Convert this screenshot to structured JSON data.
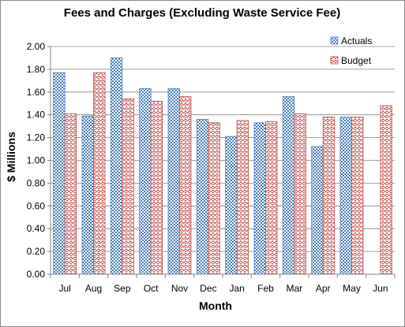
{
  "chart_data": {
    "type": "bar",
    "title": "Fees and Charges (Excluding  Waste Service Fee)",
    "xlabel": "Month",
    "ylabel": "$ Millions",
    "categories": [
      "Jul",
      "Aug",
      "Sep",
      "Oct",
      "Nov",
      "Dec",
      "Jan",
      "Feb",
      "Mar",
      "Apr",
      "May",
      "Jun"
    ],
    "series": [
      {
        "name": "Actuals",
        "values": [
          1.77,
          1.39,
          1.9,
          1.63,
          1.63,
          1.36,
          1.21,
          1.33,
          1.56,
          1.12,
          1.38,
          null
        ],
        "color": "#4a7ebb",
        "pattern": "checkerboard"
      },
      {
        "name": "Budget",
        "values": [
          1.41,
          1.77,
          1.54,
          1.52,
          1.56,
          1.33,
          1.35,
          1.34,
          1.41,
          1.38,
          1.38,
          1.48
        ],
        "color": "#c0504d",
        "pattern": "zigzag"
      }
    ],
    "ylim": [
      0,
      2.0
    ],
    "yticks": [
      "0.00",
      "0.20",
      "0.40",
      "0.60",
      "0.80",
      "1.00",
      "1.20",
      "1.40",
      "1.60",
      "1.80",
      "2.00"
    ],
    "grid": true,
    "legend_position": "top-right"
  }
}
